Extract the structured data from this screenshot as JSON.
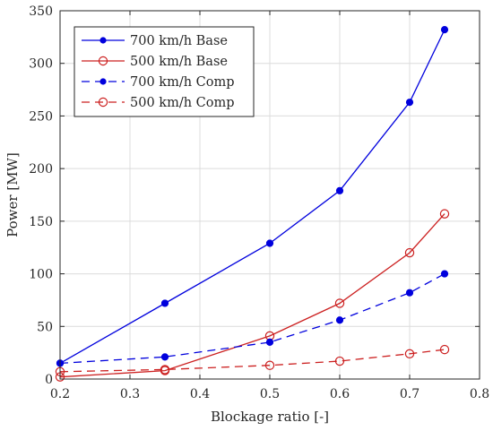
{
  "chart_data": {
    "type": "line",
    "xlabel": "Blockage ratio [-]",
    "ylabel": "Power [MW]",
    "xlim": [
      0.2,
      0.8
    ],
    "ylim": [
      0,
      350
    ],
    "xticks": [
      0.2,
      0.3,
      0.4,
      0.5,
      0.6,
      0.7,
      0.8
    ],
    "yticks": [
      0,
      50,
      100,
      150,
      200,
      250,
      300,
      350
    ],
    "xtick_labels": [
      "0.2",
      "0.3",
      "0.4",
      "0.5",
      "0.6",
      "0.7",
      "0.8"
    ],
    "ytick_labels": [
      "0",
      "50",
      "100",
      "150",
      "200",
      "250",
      "300",
      "350"
    ],
    "grid": true,
    "legend_position": "top-left",
    "series": [
      {
        "name": "700 km/h Base",
        "color": "#0000dd",
        "line": "solid",
        "marker": "filled-circle",
        "x": [
          0.2,
          0.35,
          0.5,
          0.6,
          0.7,
          0.75
        ],
        "y": [
          15,
          72,
          129,
          179,
          263,
          332
        ]
      },
      {
        "name": "500 km/h Base",
        "color": "#cc2020",
        "line": "solid",
        "marker": "open-circle",
        "x": [
          0.2,
          0.35,
          0.5,
          0.6,
          0.7,
          0.75
        ],
        "y": [
          2,
          8,
          41,
          72,
          120,
          157
        ]
      },
      {
        "name": "700 km/h Comp",
        "color": "#0000dd",
        "line": "dashed",
        "marker": "filled-circle",
        "x": [
          0.2,
          0.35,
          0.5,
          0.6,
          0.7,
          0.75
        ],
        "y": [
          15,
          21,
          35,
          56,
          82,
          100
        ]
      },
      {
        "name": "500 km/h Comp",
        "color": "#cc2020",
        "line": "dashed",
        "marker": "open-circle",
        "x": [
          0.2,
          0.35,
          0.5,
          0.6,
          0.7,
          0.75
        ],
        "y": [
          7,
          9,
          13,
          17,
          24,
          28
        ]
      }
    ]
  }
}
